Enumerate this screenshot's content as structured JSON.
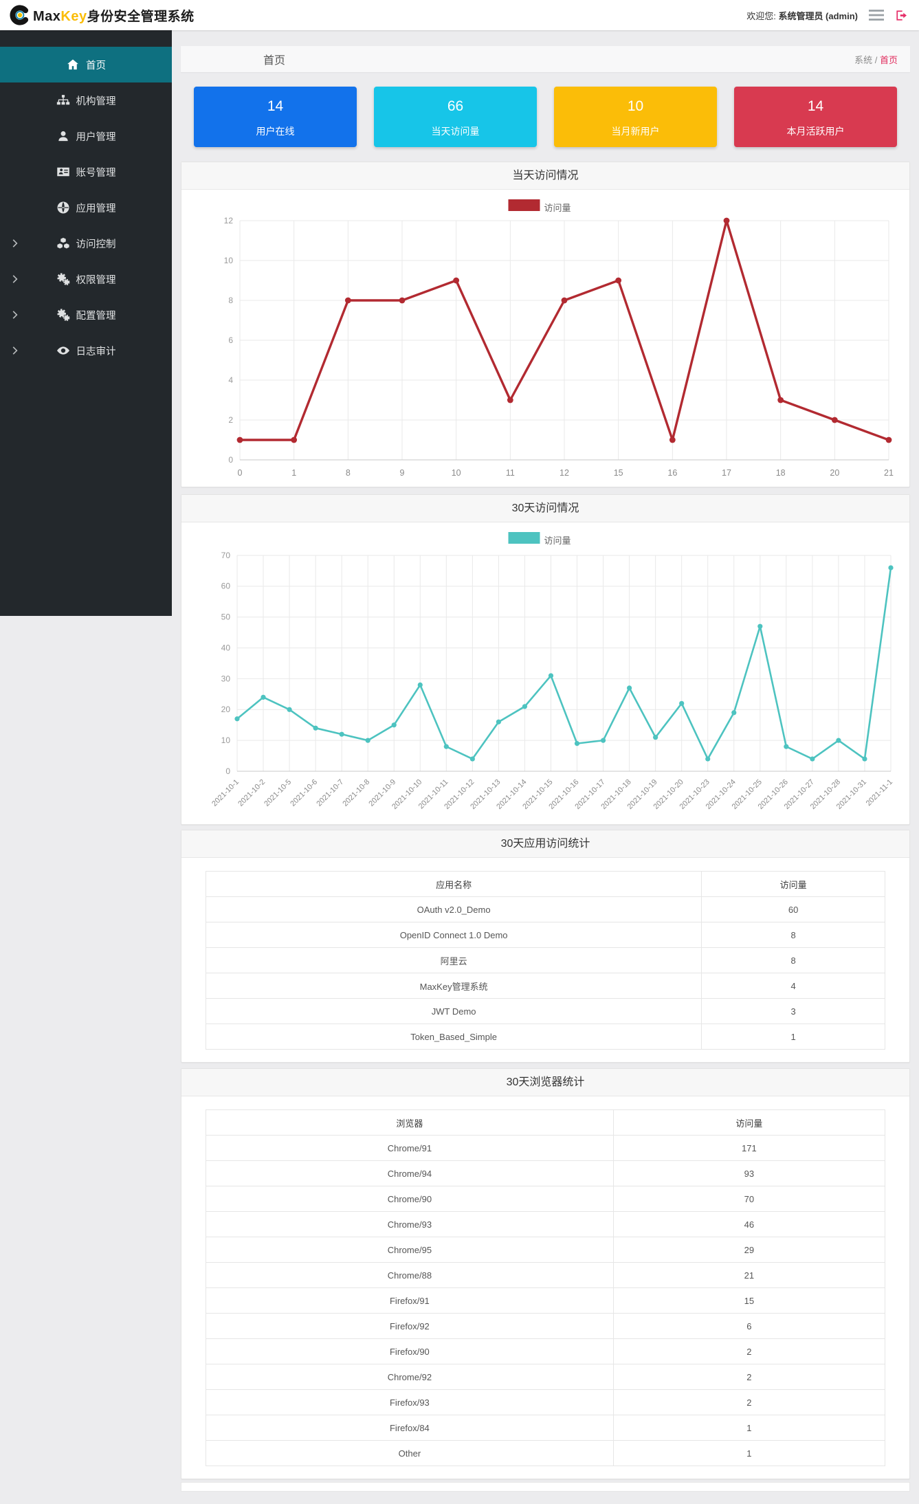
{
  "header": {
    "brand": {
      "max": "Max",
      "key": "Key",
      "suffix": "身份安全管理系统",
      "logo_icon": "maxkey-logo-icon"
    },
    "welcome_prefix": "欢迎您:",
    "welcome_user": "系统管理员 (admin)",
    "icons": [
      "menu-icon",
      "logout-icon"
    ]
  },
  "colors": {
    "brand_key": "#fbbd08",
    "accent_pink": "#e62f69",
    "sidebar_active": "#0e7080",
    "page_bg": "#ececee"
  },
  "sidebar": {
    "items": [
      {
        "name": "home",
        "label": "首页",
        "icon": "home-icon",
        "active": true,
        "expandable": false
      },
      {
        "name": "org-management",
        "label": "机构管理",
        "icon": "sitemap-icon",
        "active": false,
        "expandable": false
      },
      {
        "name": "user-management",
        "label": "用户管理",
        "icon": "user-icon",
        "active": false,
        "expandable": false
      },
      {
        "name": "account-management",
        "label": "账号管理",
        "icon": "id-card-icon",
        "active": false,
        "expandable": false
      },
      {
        "name": "app-management",
        "label": "应用管理",
        "icon": "globe-icon",
        "active": false,
        "expandable": false
      },
      {
        "name": "access-control",
        "label": "访问控制",
        "icon": "cubes-icon",
        "active": false,
        "expandable": true
      },
      {
        "name": "permission-management",
        "label": "权限管理",
        "icon": "gears-icon",
        "active": false,
        "expandable": true
      },
      {
        "name": "config-management",
        "label": "配置管理",
        "icon": "gears-icon",
        "active": false,
        "expandable": true
      },
      {
        "name": "log-audit",
        "label": "日志审计",
        "icon": "eye-icon",
        "active": false,
        "expandable": true
      }
    ]
  },
  "breadcrumb": {
    "page_title": "首页",
    "root": "系统",
    "separator": "/",
    "current": "首页"
  },
  "stat_cards": [
    {
      "value": "14",
      "label": "用户在线",
      "color": "#1272eb"
    },
    {
      "value": "66",
      "label": "当天访问量",
      "color": "#17c5e8"
    },
    {
      "value": "10",
      "label": "当月新用户",
      "color": "#fbbd08"
    },
    {
      "value": "14",
      "label": "本月活跃用户",
      "color": "#d83a50"
    }
  ],
  "chart_data": [
    {
      "type": "line",
      "title": "当天访问情况",
      "legend": "访问量",
      "legend_position": "top",
      "color": "#b22a31",
      "grid": true,
      "categories": [
        "0",
        "1",
        "8",
        "9",
        "10",
        "11",
        "12",
        "15",
        "16",
        "17",
        "18",
        "20",
        "21"
      ],
      "values": [
        1,
        1,
        8,
        8,
        9,
        3,
        8,
        9,
        1,
        12,
        3,
        2,
        1
      ],
      "xlabel": "",
      "ylabel": "",
      "ylim": [
        0,
        12
      ],
      "ytick_step": 2
    },
    {
      "type": "line",
      "title": "30天访问情况",
      "legend": "访问量",
      "legend_position": "top",
      "color": "#4dc3c0",
      "grid": true,
      "categories": [
        "2021-10-1",
        "2021-10-2",
        "2021-10-5",
        "2021-10-6",
        "2021-10-7",
        "2021-10-8",
        "2021-10-9",
        "2021-10-10",
        "2021-10-11",
        "2021-10-12",
        "2021-10-13",
        "2021-10-14",
        "2021-10-15",
        "2021-10-16",
        "2021-10-17",
        "2021-10-18",
        "2021-10-19",
        "2021-10-20",
        "2021-10-23",
        "2021-10-24",
        "2021-10-25",
        "2021-10-26",
        "2021-10-27",
        "2021-10-28",
        "2021-10-31",
        "2021-11-1"
      ],
      "values": [
        17,
        24,
        20,
        14,
        12,
        10,
        15,
        28,
        8,
        4,
        16,
        21,
        31,
        9,
        10,
        27,
        11,
        22,
        4,
        19,
        47,
        8,
        4,
        10,
        4,
        66
      ],
      "xlabel": "",
      "ylabel": "",
      "ylim": [
        0,
        70
      ],
      "ytick_step": 10,
      "x_label_rotation": -45
    }
  ],
  "tables": [
    {
      "title": "30天应用访问统计",
      "columns": [
        "应用名称",
        "访问量"
      ],
      "rows": [
        [
          "OAuth v2.0_Demo",
          "60"
        ],
        [
          "OpenID Connect 1.0 Demo",
          "8"
        ],
        [
          "阿里云",
          "8"
        ],
        [
          "MaxKey管理系统",
          "4"
        ],
        [
          "JWT Demo",
          "3"
        ],
        [
          "Token_Based_Simple",
          "1"
        ]
      ]
    },
    {
      "title": "30天浏览器统计",
      "columns": [
        "浏览器",
        "访问量"
      ],
      "rows": [
        [
          "Chrome/91",
          "171"
        ],
        [
          "Chrome/94",
          "93"
        ],
        [
          "Chrome/90",
          "70"
        ],
        [
          "Chrome/93",
          "46"
        ],
        [
          "Chrome/95",
          "29"
        ],
        [
          "Chrome/88",
          "21"
        ],
        [
          "Firefox/91",
          "15"
        ],
        [
          "Firefox/92",
          "6"
        ],
        [
          "Firefox/90",
          "2"
        ],
        [
          "Chrome/92",
          "2"
        ],
        [
          "Firefox/93",
          "2"
        ],
        [
          "Firefox/84",
          "1"
        ],
        [
          "Other",
          "1"
        ]
      ]
    }
  ]
}
